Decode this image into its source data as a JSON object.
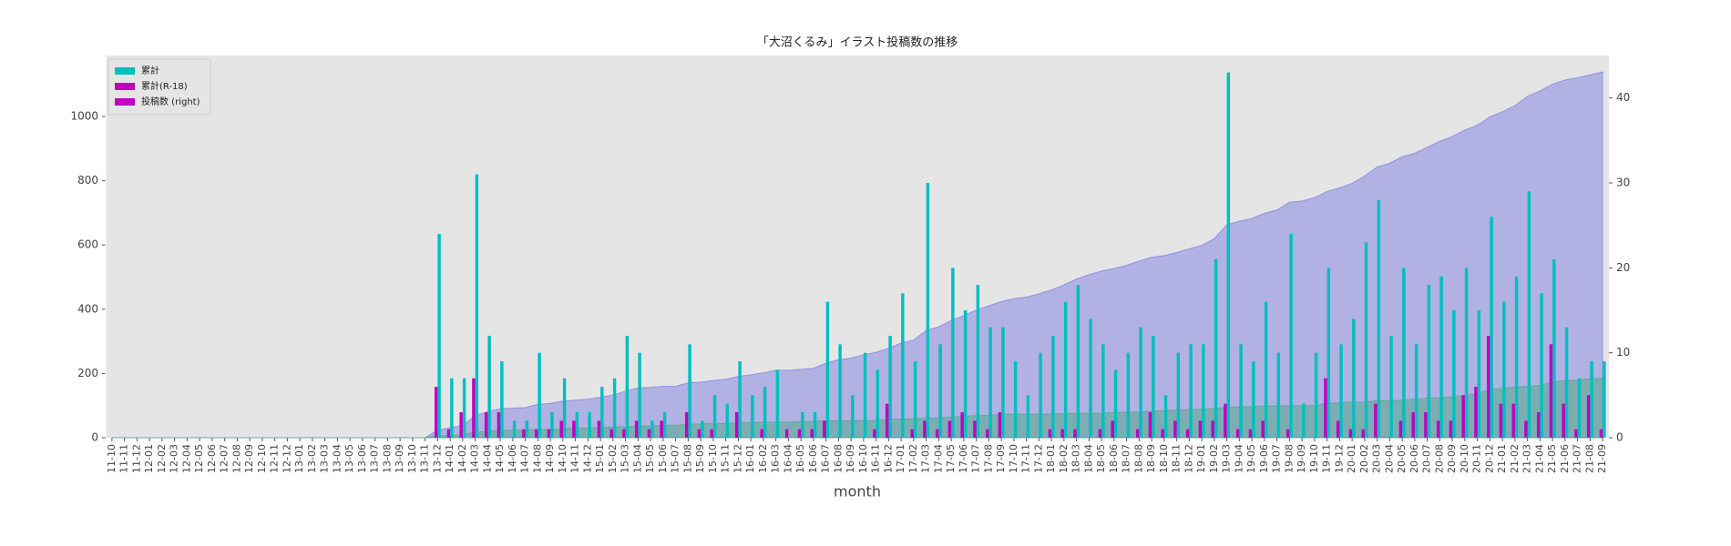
{
  "chart_data": {
    "type": "bar",
    "title": "「大沼くるみ」イラスト投稿数の推移",
    "xlabel": "month",
    "categories": [
      "11-10",
      "11-11",
      "11-12",
      "12-01",
      "12-02",
      "12-03",
      "12-04",
      "12-05",
      "12-06",
      "12-07",
      "12-08",
      "12-09",
      "12-10",
      "12-11",
      "12-12",
      "13-01",
      "13-02",
      "13-03",
      "13-04",
      "13-05",
      "13-06",
      "13-07",
      "13-08",
      "13-09",
      "13-10",
      "13-11",
      "13-12",
      "14-01",
      "14-02",
      "14-03",
      "14-04",
      "14-05",
      "14-06",
      "14-07",
      "14-08",
      "14-09",
      "14-10",
      "14-11",
      "14-12",
      "15-01",
      "15-02",
      "15-03",
      "15-04",
      "15-05",
      "15-06",
      "15-07",
      "15-08",
      "15-09",
      "15-10",
      "15-11",
      "15-12",
      "16-01",
      "16-02",
      "16-03",
      "16-04",
      "16-05",
      "16-06",
      "16-07",
      "16-08",
      "16-09",
      "16-10",
      "16-11",
      "16-12",
      "17-01",
      "17-02",
      "17-03",
      "17-04",
      "17-05",
      "17-06",
      "17-07",
      "17-08",
      "17-09",
      "17-10",
      "17-11",
      "17-12",
      "18-01",
      "18-02",
      "18-03",
      "18-04",
      "18-05",
      "18-06",
      "18-07",
      "18-08",
      "18-09",
      "18-10",
      "18-11",
      "18-12",
      "19-01",
      "19-02",
      "19-03",
      "19-04",
      "19-05",
      "19-06",
      "19-07",
      "19-08",
      "19-09",
      "19-10",
      "19-11",
      "19-12",
      "20-01",
      "20-02",
      "20-03",
      "20-04",
      "20-05",
      "20-06",
      "20-07",
      "20-08",
      "20-09",
      "20-10",
      "20-11",
      "20-12",
      "21-01",
      "21-02",
      "21-03",
      "21-04",
      "21-05",
      "21-06",
      "21-07",
      "21-08",
      "21-09"
    ],
    "series": [
      {
        "name": "累計",
        "type": "area",
        "color": "#7070e0",
        "legend_color": "#00bfbf",
        "values": [
          0,
          0,
          0,
          0,
          0,
          0,
          0,
          0,
          0,
          0,
          0,
          0,
          0,
          0,
          0,
          0,
          0,
          0,
          0,
          0,
          0,
          0,
          0,
          0,
          0,
          0,
          24,
          31,
          38,
          69,
          81,
          90,
          92,
          94,
          104,
          107,
          114,
          117,
          120,
          126,
          133,
          145,
          155,
          157,
          160,
          160,
          171,
          173,
          178,
          182,
          191,
          196,
          202,
          210,
          210,
          213,
          216,
          232,
          243,
          248,
          258,
          266,
          278,
          295,
          304,
          334,
          345,
          365,
          380,
          398,
          411,
          424,
          433,
          438,
          448,
          460,
          476,
          494,
          508,
          519,
          527,
          537,
          550,
          562,
          567,
          577,
          588,
          599,
          620,
          663,
          674,
          683,
          699,
          709,
          733,
          737,
          747,
          767,
          778,
          792,
          815,
          843,
          855,
          875,
          886,
          904,
          923,
          938,
          958,
          973,
          999,
          1015,
          1034,
          1063,
          1080,
          1101,
          1114,
          1121,
          1130,
          1139
        ]
      },
      {
        "name": "累計(R-18)",
        "type": "area",
        "color": "#3fa878",
        "legend_color": "#bf00bf",
        "values": [
          0,
          0,
          0,
          0,
          0,
          0,
          0,
          0,
          0,
          0,
          0,
          0,
          0,
          0,
          0,
          0,
          0,
          0,
          0,
          0,
          0,
          0,
          0,
          0,
          0,
          0,
          6,
          7,
          10,
          17,
          20,
          23,
          23,
          24,
          25,
          26,
          28,
          30,
          30,
          32,
          33,
          34,
          36,
          37,
          39,
          39,
          42,
          43,
          44,
          44,
          47,
          47,
          48,
          48,
          49,
          50,
          51,
          53,
          53,
          53,
          53,
          54,
          58,
          58,
          59,
          61,
          62,
          64,
          67,
          69,
          70,
          73,
          73,
          73,
          73,
          74,
          75,
          76,
          76,
          77,
          79,
          79,
          80,
          83,
          84,
          86,
          87,
          89,
          91,
          95,
          96,
          97,
          99,
          99,
          100,
          100,
          100,
          107,
          109,
          110,
          111,
          115,
          115,
          117,
          120,
          123,
          125,
          127,
          132,
          138,
          150,
          154,
          158,
          160,
          163,
          174,
          178,
          179,
          184,
          185
        ]
      },
      {
        "name": "投稿数 (right)",
        "type": "bar",
        "axis": "y2",
        "color": "#00bfbf",
        "legend_color": "#bf00bf",
        "values": [
          0,
          0,
          0,
          0,
          0,
          0,
          0,
          0,
          0,
          0,
          0,
          0,
          0,
          0,
          0,
          0,
          0,
          0,
          0,
          0,
          0,
          0,
          0,
          0,
          0,
          0,
          24,
          7,
          7,
          31,
          12,
          9,
          2,
          2,
          10,
          3,
          7,
          3,
          3,
          6,
          7,
          12,
          10,
          2,
          3,
          0,
          11,
          2,
          5,
          4,
          9,
          5,
          6,
          8,
          0,
          3,
          3,
          16,
          11,
          5,
          10,
          8,
          12,
          17,
          9,
          30,
          11,
          20,
          15,
          18,
          13,
          13,
          9,
          5,
          10,
          12,
          16,
          18,
          14,
          11,
          8,
          10,
          13,
          12,
          5,
          10,
          11,
          11,
          21,
          43,
          11,
          9,
          16,
          10,
          24,
          4,
          10,
          20,
          11,
          14,
          23,
          28,
          12,
          20,
          11,
          18,
          19,
          15,
          20,
          15,
          26,
          16,
          19,
          29,
          17,
          21,
          13,
          7,
          9,
          9
        ]
      },
      {
        "type": "bar",
        "axis": "y2",
        "color": "#bf00bf",
        "values": [
          0,
          0,
          0,
          0,
          0,
          0,
          0,
          0,
          0,
          0,
          0,
          0,
          0,
          0,
          0,
          0,
          0,
          0,
          0,
          0,
          0,
          0,
          0,
          0,
          0,
          0,
          6,
          1,
          3,
          7,
          3,
          3,
          0,
          1,
          1,
          1,
          2,
          2,
          0,
          2,
          1,
          1,
          2,
          1,
          2,
          0,
          3,
          1,
          1,
          0,
          3,
          0,
          1,
          0,
          1,
          1,
          1,
          2,
          0,
          0,
          0,
          1,
          4,
          0,
          1,
          2,
          1,
          2,
          3,
          2,
          1,
          3,
          0,
          0,
          0,
          1,
          1,
          1,
          0,
          1,
          2,
          0,
          1,
          3,
          1,
          2,
          1,
          2,
          2,
          4,
          1,
          1,
          2,
          0,
          1,
          0,
          0,
          7,
          2,
          1,
          1,
          4,
          0,
          2,
          3,
          3,
          2,
          2,
          5,
          6,
          12,
          4,
          4,
          2,
          3,
          11,
          4,
          1,
          5,
          1
        ]
      }
    ],
    "ylim": [
      0,
      1190
    ],
    "yticks": [
      0,
      200,
      400,
      600,
      800,
      1000
    ],
    "y2lim": [
      0,
      45
    ],
    "y2ticks": [
      0,
      10,
      20,
      30,
      40
    ],
    "legend": "upper left",
    "background": "#e5e5e5"
  }
}
